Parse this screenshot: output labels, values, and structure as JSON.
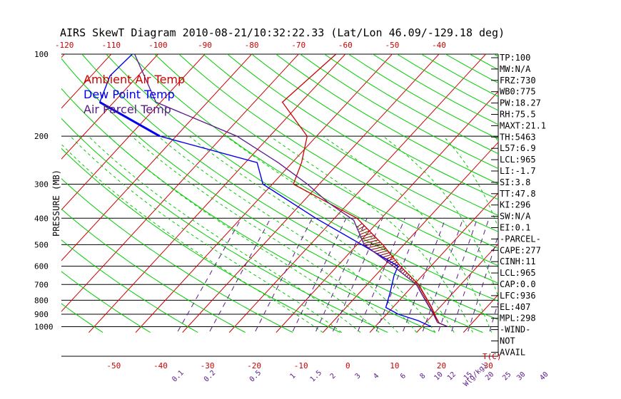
{
  "title": "AIRS SkewT Diagram 2010-08-21/10:32:22.33 (Lat/Lon 46.09/-129.18 deg)",
  "colors": {
    "ambient": "#cc0000",
    "dewpoint": "#0000ee",
    "parcel": "#5a1a8a",
    "isotherm": "#cc0000",
    "dry_adiabat": "#00cc00",
    "moist_adiabat": "#00cc00",
    "mixing_ratio": "#5a1a8a",
    "isobar": "#000000",
    "cape_hatch": "#8b0000"
  },
  "chart_data": {
    "type": "line",
    "title": "AIRS SkewT Diagram 2010-08-21/10:32:22.33 (Lat/Lon 46.09/-129.18 deg)",
    "ylabel": "PRESSURE (MB)",
    "xlabel_units": "T(C)",
    "mixing_units": "W(g/kg)",
    "pressure_ticks": [
      100,
      200,
      300,
      400,
      500,
      600,
      700,
      800,
      900,
      1000
    ],
    "temp_ticks_top": [
      -120,
      -110,
      -100,
      -90,
      -80,
      -70,
      -60,
      -50,
      -40
    ],
    "temp_ticks_bottom": [
      -50,
      -40,
      -30,
      -20,
      -10,
      0,
      10,
      20,
      30
    ],
    "mixing_ratio_ticks": [
      "0.1",
      "0.2",
      "0.5",
      "1",
      "1.5",
      "2",
      "3",
      "4",
      "6",
      "8",
      "10",
      "12",
      "15",
      "20",
      "25",
      "30",
      "40"
    ],
    "legend": [
      "Ambient Air Temp",
      "Dew Point Temp",
      "Air Parcel Temp"
    ],
    "series": [
      {
        "name": "Ambient Air Temp",
        "points": [
          [
            1000,
            15.5
          ],
          [
            970,
            13.0
          ],
          [
            925,
            11.2
          ],
          [
            850,
            8.3
          ],
          [
            700,
            1.0
          ],
          [
            600,
            -6.5
          ],
          [
            500,
            -14.5
          ],
          [
            400,
            -25.2
          ],
          [
            300,
            -45.5
          ],
          [
            250,
            -48.0
          ],
          [
            200,
            -52.0
          ],
          [
            150,
            -64.0
          ],
          [
            100,
            -62.0
          ]
        ]
      },
      {
        "name": "Dew Point Temp",
        "points": [
          [
            1000,
            12.0
          ],
          [
            950,
            8.0
          ],
          [
            900,
            2.5
          ],
          [
            850,
            -1.5
          ],
          [
            750,
            -3.5
          ],
          [
            650,
            -6.0
          ],
          [
            600,
            -7.0
          ],
          [
            500,
            -19.0
          ],
          [
            400,
            -34.0
          ],
          [
            300,
            -52.0
          ],
          [
            250,
            -57.5
          ],
          [
            200,
            -83.5
          ],
          [
            150,
            -103.0
          ],
          [
            120,
            -106.0
          ],
          [
            100,
            -105.5
          ]
        ]
      },
      {
        "name": "Air Parcel Temp",
        "points": [
          [
            1000,
            15.5
          ],
          [
            965,
            12.5
          ],
          [
            900,
            10.0
          ],
          [
            800,
            5.5
          ],
          [
            700,
            0.5
          ],
          [
            600,
            -8.0
          ],
          [
            500,
            -18.5
          ],
          [
            407,
            -25.5
          ],
          [
            350,
            -34.5
          ],
          [
            300,
            -42.5
          ],
          [
            250,
            -53.0
          ],
          [
            200,
            -67.0
          ],
          [
            150,
            -91.0
          ],
          [
            100,
            -105.0
          ]
        ]
      }
    ],
    "indices": [
      "TP:100",
      "MW:N/A",
      "FRZ:730",
      "WB0:775",
      "PW:18.27",
      "RH:75.5",
      "MAXT:21.1",
      "TH:5463",
      "L57:6.9",
      "LCL:965",
      "LI:-1.7",
      "SI:3.8",
      "TT:47.8",
      "KI:296",
      "SW:N/A",
      "EI:0.1",
      "-PARCEL-",
      "CAPE:277",
      "CINH:11",
      "LCL:965",
      "CAP:0.0",
      "LFC:936",
      "EL:407",
      "MPL:298",
      "-WIND-",
      "NOT",
      "AVAIL"
    ]
  }
}
